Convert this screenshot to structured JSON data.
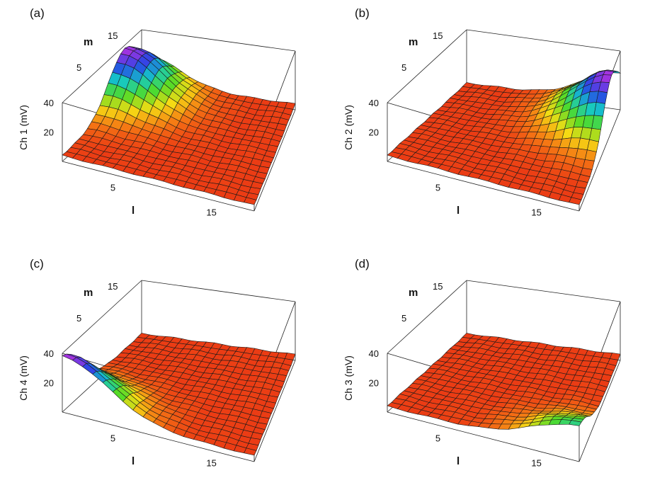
{
  "chart_data": [
    {
      "type": "surface3d",
      "panel_label": "(a)",
      "zlabel": "Ch 1  (mV)",
      "xlabel": "l",
      "ylabel": "m",
      "x_ticks": [
        "5",
        "15"
      ],
      "y_ticks": [
        "5",
        "15"
      ],
      "z_ticks": [
        "20",
        "40"
      ],
      "x_range": [
        1,
        20
      ],
      "y_range": [
        1,
        20
      ],
      "z_range": [
        0,
        40
      ],
      "peak": {
        "l": 1,
        "m": 16,
        "value_mV": 38
      },
      "baseline_mV": 4,
      "colormap": "rainbow (red low to magenta high)"
    },
    {
      "type": "surface3d",
      "panel_label": "(b)",
      "zlabel": "Ch 2  (mV)",
      "xlabel": "l",
      "ylabel": "m",
      "x_ticks": [
        "5",
        "15"
      ],
      "y_ticks": [
        "5",
        "15"
      ],
      "z_ticks": [
        "20",
        "40"
      ],
      "x_range": [
        1,
        20
      ],
      "y_range": [
        1,
        20
      ],
      "z_range": [
        0,
        40
      ],
      "peak": {
        "l": 20,
        "m": 16,
        "value_mV": 38
      },
      "baseline_mV": 4,
      "colormap": "rainbow (red low to magenta high)"
    },
    {
      "type": "surface3d",
      "panel_label": "(c)",
      "zlabel": "Ch 4  (mV)",
      "xlabel": "l",
      "ylabel": "m",
      "x_ticks": [
        "5",
        "15"
      ],
      "y_ticks": [
        "5",
        "15"
      ],
      "z_ticks": [
        "20",
        "40"
      ],
      "x_range": [
        1,
        20
      ],
      "y_range": [
        1,
        20
      ],
      "z_range": [
        0,
        40
      ],
      "peak": {
        "l": 1,
        "m": 1,
        "value_mV": 38
      },
      "baseline_mV": 4,
      "colormap": "rainbow (red low to magenta high)"
    },
    {
      "type": "surface3d",
      "panel_label": "(d)",
      "zlabel": "Ch 3  (mV)",
      "xlabel": "l",
      "ylabel": "m",
      "x_ticks": [
        "5",
        "15"
      ],
      "y_ticks": [
        "5",
        "15"
      ],
      "z_ticks": [
        "20",
        "40"
      ],
      "x_range": [
        1,
        20
      ],
      "y_range": [
        1,
        20
      ],
      "z_range": [
        0,
        40
      ],
      "peak": {
        "l": 20,
        "m": 1,
        "value_mV": 24
      },
      "baseline_mV": 4,
      "colormap": "rainbow (red low to magenta high)"
    }
  ]
}
